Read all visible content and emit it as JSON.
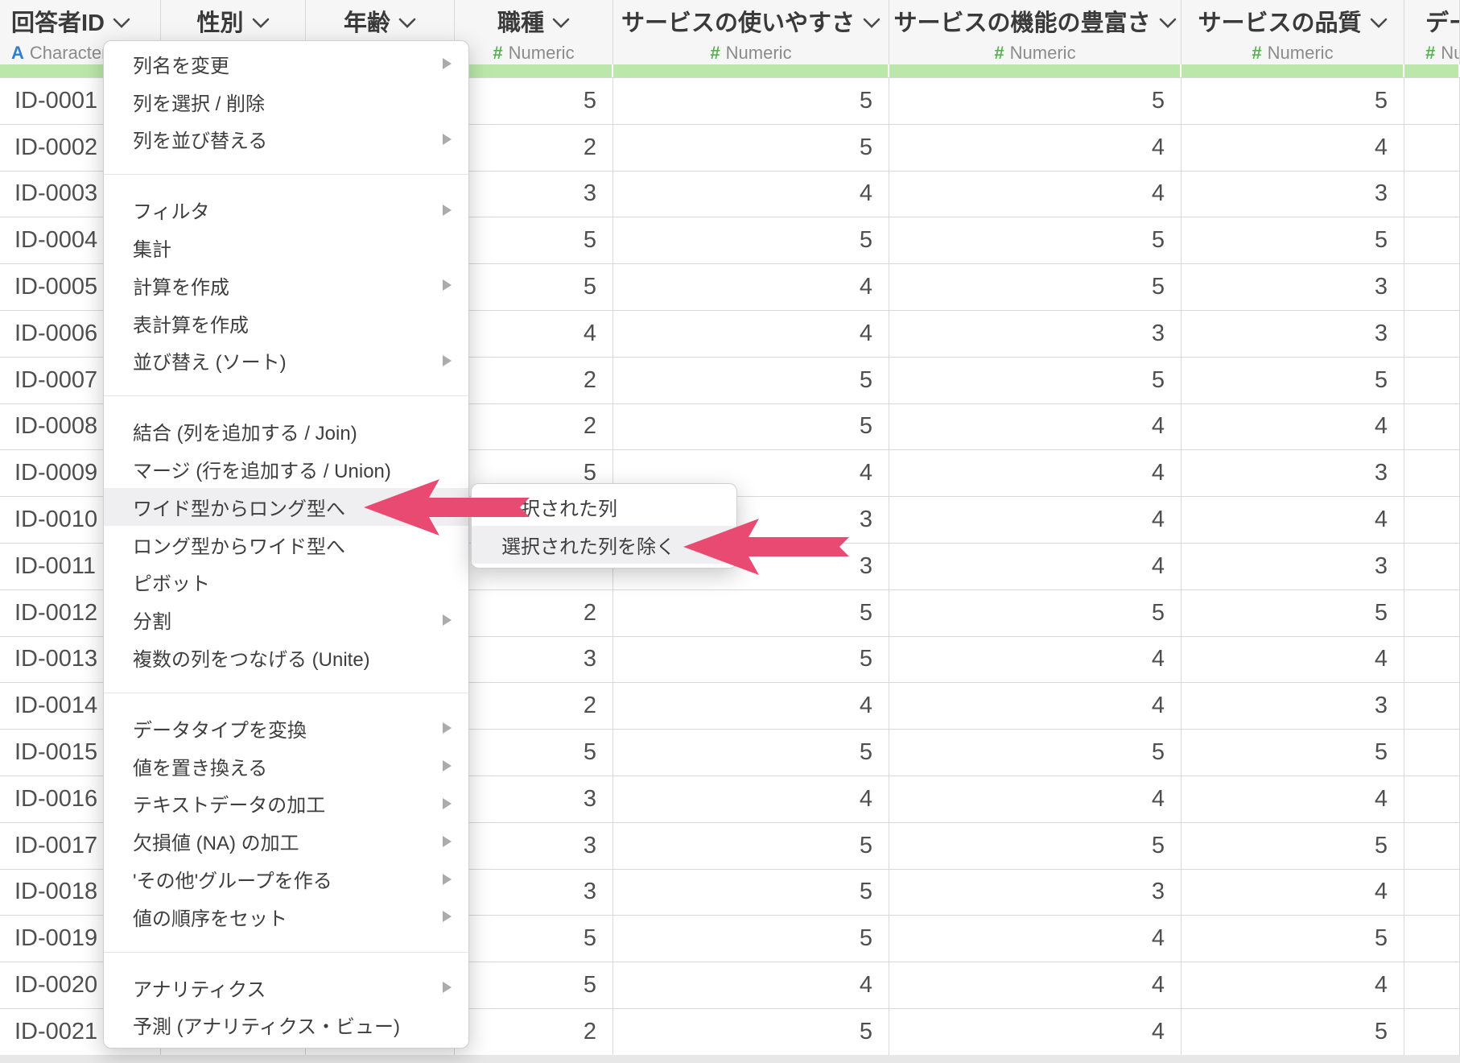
{
  "table": {
    "columns": [
      {
        "label": "回答者ID",
        "type_icon": "A",
        "type_label": "Character",
        "align": "left"
      },
      {
        "label": "性別",
        "type_icon": "",
        "type_label": "",
        "align": "center"
      },
      {
        "label": "年齢",
        "type_icon": "",
        "type_label": "",
        "align": "center"
      },
      {
        "label": "職種",
        "type_icon": "#",
        "type_label": "Numeric",
        "align": "center"
      },
      {
        "label": "サービスの使いやすさ",
        "type_icon": "#",
        "type_label": "Numeric",
        "align": "center"
      },
      {
        "label": "サービスの機能の豊富さ",
        "type_icon": "#",
        "type_label": "Numeric",
        "align": "center"
      },
      {
        "label": "サービスの品質",
        "type_icon": "#",
        "type_label": "Numeric",
        "align": "center"
      },
      {
        "label": "デー",
        "type_icon": "#",
        "type_label": "Numeric",
        "align": "last"
      }
    ],
    "rows": [
      {
        "id": "ID-0001",
        "cells": [
          null,
          null,
          5,
          5,
          5,
          5,
          null
        ]
      },
      {
        "id": "ID-0002",
        "cells": [
          null,
          null,
          2,
          5,
          4,
          4,
          null
        ]
      },
      {
        "id": "ID-0003",
        "cells": [
          null,
          null,
          3,
          4,
          4,
          3,
          null
        ]
      },
      {
        "id": "ID-0004",
        "cells": [
          null,
          null,
          5,
          5,
          5,
          5,
          null
        ]
      },
      {
        "id": "ID-0005",
        "cells": [
          null,
          null,
          5,
          4,
          5,
          3,
          null
        ]
      },
      {
        "id": "ID-0006",
        "cells": [
          null,
          null,
          4,
          4,
          3,
          3,
          null
        ]
      },
      {
        "id": "ID-0007",
        "cells": [
          null,
          null,
          2,
          5,
          5,
          5,
          null
        ]
      },
      {
        "id": "ID-0008",
        "cells": [
          null,
          null,
          2,
          5,
          4,
          4,
          null
        ]
      },
      {
        "id": "ID-0009",
        "cells": [
          null,
          null,
          5,
          4,
          4,
          3,
          null
        ]
      },
      {
        "id": "ID-0010",
        "cells": [
          null,
          null,
          null,
          3,
          4,
          4,
          null
        ]
      },
      {
        "id": "ID-0011",
        "cells": [
          null,
          null,
          null,
          3,
          4,
          3,
          null
        ]
      },
      {
        "id": "ID-0012",
        "cells": [
          null,
          null,
          2,
          5,
          5,
          5,
          null
        ]
      },
      {
        "id": "ID-0013",
        "cells": [
          null,
          null,
          3,
          5,
          4,
          4,
          null
        ]
      },
      {
        "id": "ID-0014",
        "cells": [
          null,
          null,
          2,
          4,
          4,
          3,
          null
        ]
      },
      {
        "id": "ID-0015",
        "cells": [
          null,
          null,
          5,
          5,
          5,
          5,
          null
        ]
      },
      {
        "id": "ID-0016",
        "cells": [
          null,
          null,
          3,
          4,
          4,
          4,
          null
        ]
      },
      {
        "id": "ID-0017",
        "cells": [
          null,
          null,
          3,
          5,
          5,
          5,
          null
        ]
      },
      {
        "id": "ID-0018",
        "cells": [
          null,
          null,
          3,
          5,
          3,
          4,
          null
        ]
      },
      {
        "id": "ID-0019",
        "cells": [
          null,
          null,
          5,
          5,
          4,
          5,
          null
        ]
      },
      {
        "id": "ID-0020",
        "cells": [
          null,
          null,
          5,
          4,
          4,
          4,
          null
        ]
      },
      {
        "id": "ID-0021",
        "cells": [
          null,
          null,
          2,
          5,
          4,
          5,
          null
        ]
      }
    ]
  },
  "menu": {
    "groups": [
      [
        {
          "label": "列名を変更",
          "submenu": true
        },
        {
          "label": "列を選択 / 削除"
        },
        {
          "label": "列を並び替える",
          "submenu": true
        }
      ],
      [
        {
          "label": "フィルタ",
          "submenu": true
        },
        {
          "label": "集計"
        },
        {
          "label": "計算を作成",
          "submenu": true
        },
        {
          "label": "表計算を作成"
        },
        {
          "label": "並び替え (ソート)",
          "submenu": true
        }
      ],
      [
        {
          "label": "結合 (列を追加する / Join)"
        },
        {
          "label": "マージ (行を追加する / Union)"
        },
        {
          "label": "ワイド型からロング型へ",
          "submenu": true,
          "highlighted": true
        },
        {
          "label": "ロング型からワイド型へ"
        },
        {
          "label": "ピボット"
        },
        {
          "label": "分割",
          "submenu": true
        },
        {
          "label": "複数の列をつなげる (Unite)"
        }
      ],
      [
        {
          "label": "データタイプを変換",
          "submenu": true
        },
        {
          "label": "値を置き換える",
          "submenu": true
        },
        {
          "label": "テキストデータの加工",
          "submenu": true
        },
        {
          "label": "欠損値 (NA) の加工",
          "submenu": true
        },
        {
          "label": "'その他'グループを作る",
          "submenu": true
        },
        {
          "label": "値の順序をセット",
          "submenu": true
        }
      ],
      [
        {
          "label": "アナリティクス",
          "submenu": true
        },
        {
          "label": "予測 (アナリティクス・ビュー)"
        }
      ]
    ]
  },
  "submenu": {
    "items": [
      {
        "label": "選択された列"
      },
      {
        "label": "選択された列を除く",
        "highlighted": true
      }
    ]
  },
  "colors": {
    "arrow_pink": "#e94a71",
    "green_bar": "#bbe8aa",
    "numeric_green": "#56b14f",
    "character_blue": "#2f7fd1",
    "highlight_gray": "#efeef0"
  }
}
